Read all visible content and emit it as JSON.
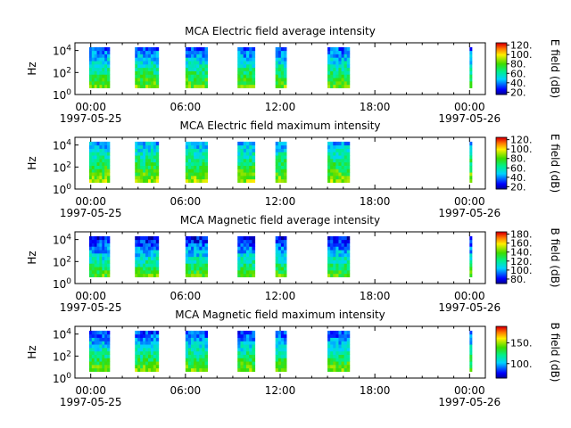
{
  "chart_data": [
    {
      "type": "heatmap",
      "title": "MCA  Electric field average intensity",
      "ylabel": "Hz",
      "y_scale": "log",
      "ylim": [
        1,
        50000
      ],
      "y_ticks": [
        {
          "base": "10",
          "exp": "0"
        },
        {
          "base": "10",
          "exp": "2"
        },
        {
          "base": "10",
          "exp": "4"
        }
      ],
      "xlim_hours": [
        -1,
        25
      ],
      "x_ticks": [
        "00:00",
        "06:00",
        "12:00",
        "18:00",
        "00:00"
      ],
      "x_dates": [
        "1997-05-25",
        "1997-05-26"
      ],
      "colorbar": {
        "label": "E field (dB)",
        "min": 15,
        "max": 125,
        "ticks": [
          20,
          40,
          60,
          80,
          100,
          120
        ],
        "labels": [
          "20.",
          "40.",
          "60.",
          "80.",
          "100.",
          "120."
        ]
      },
      "segments_hours": [
        [
          -0.1,
          1.2
        ],
        [
          2.8,
          4.3
        ],
        [
          6.0,
          7.4
        ],
        [
          9.3,
          10.4
        ],
        [
          11.7,
          12.4
        ],
        [
          15.0,
          16.4
        ],
        [
          24.0,
          24.15
        ]
      ],
      "spectrum_band": "low frequencies strongest",
      "low_bins_value": 85,
      "high_bins_value": 35
    },
    {
      "type": "heatmap",
      "title": "MCA  Electric field maximum intensity",
      "ylabel": "Hz",
      "y_scale": "log",
      "ylim": [
        1,
        50000
      ],
      "y_ticks": [
        {
          "base": "10",
          "exp": "0"
        },
        {
          "base": "10",
          "exp": "2"
        },
        {
          "base": "10",
          "exp": "4"
        }
      ],
      "xlim_hours": [
        -1,
        25
      ],
      "x_ticks": [
        "00:00",
        "06:00",
        "12:00",
        "18:00",
        "00:00"
      ],
      "x_dates": [
        "1997-05-25",
        "1997-05-26"
      ],
      "colorbar": {
        "label": "E field (dB)",
        "min": 15,
        "max": 125,
        "ticks": [
          20,
          40,
          60,
          80,
          100,
          120
        ],
        "labels": [
          "20.",
          "40.",
          "60.",
          "80.",
          "100.",
          "120."
        ]
      },
      "segments_hours": [
        [
          -0.1,
          1.2
        ],
        [
          2.8,
          4.3
        ],
        [
          6.0,
          7.4
        ],
        [
          9.3,
          10.4
        ],
        [
          11.7,
          12.4
        ],
        [
          15.0,
          16.4
        ],
        [
          24.0,
          24.15
        ]
      ],
      "spectrum_band": "low frequencies strongest",
      "low_bins_value": 90,
      "high_bins_value": 45
    },
    {
      "type": "heatmap",
      "title": "MCA  Magnetic field average intensity",
      "ylabel": "Hz",
      "y_scale": "log",
      "ylim": [
        1,
        50000
      ],
      "y_ticks": [
        {
          "base": "10",
          "exp": "0"
        },
        {
          "base": "10",
          "exp": "2"
        },
        {
          "base": "10",
          "exp": "4"
        }
      ],
      "xlim_hours": [
        -1,
        25
      ],
      "x_ticks": [
        "00:00",
        "06:00",
        "12:00",
        "18:00",
        "00:00"
      ],
      "x_dates": [
        "1997-05-25",
        "1997-05-26"
      ],
      "colorbar": {
        "label": "B field (dB)",
        "min": 70,
        "max": 185,
        "ticks": [
          80,
          100,
          120,
          140,
          160,
          180
        ],
        "labels": [
          "80.",
          "100.",
          "120.",
          "140.",
          "160.",
          "180."
        ]
      },
      "segments_hours": [
        [
          -0.1,
          1.2
        ],
        [
          2.8,
          4.3
        ],
        [
          6.0,
          7.4
        ],
        [
          9.3,
          10.4
        ],
        [
          11.7,
          12.4
        ],
        [
          15.0,
          16.4
        ],
        [
          24.0,
          24.15
        ]
      ],
      "spectrum_band": "blue at high frequencies, yellow-green at low",
      "low_bins_value": 140,
      "high_bins_value": 80
    },
    {
      "type": "heatmap",
      "title": "MCA  Magnetic field maximum intensity",
      "ylabel": "Hz",
      "y_scale": "log",
      "ylim": [
        1,
        50000
      ],
      "y_ticks": [
        {
          "base": "10",
          "exp": "0"
        },
        {
          "base": "10",
          "exp": "2"
        },
        {
          "base": "10",
          "exp": "4"
        }
      ],
      "xlim_hours": [
        -1,
        25
      ],
      "x_ticks": [
        "00:00",
        "06:00",
        "12:00",
        "18:00",
        "00:00"
      ],
      "x_dates": [
        "1997-05-25",
        "1997-05-26"
      ],
      "colorbar": {
        "label": "B field (dB)",
        "min": 65,
        "max": 190,
        "ticks": [
          100,
          150
        ],
        "labels": [
          "100.",
          "150."
        ]
      },
      "segments_hours": [
        [
          -0.1,
          1.2
        ],
        [
          2.8,
          4.3
        ],
        [
          6.0,
          7.4
        ],
        [
          9.3,
          10.4
        ],
        [
          11.7,
          12.4
        ],
        [
          15.0,
          16.4
        ],
        [
          24.0,
          24.15
        ]
      ],
      "spectrum_band": "blue at high frequencies, yellow-green at low",
      "low_bins_value": 145,
      "high_bins_value": 85
    }
  ]
}
